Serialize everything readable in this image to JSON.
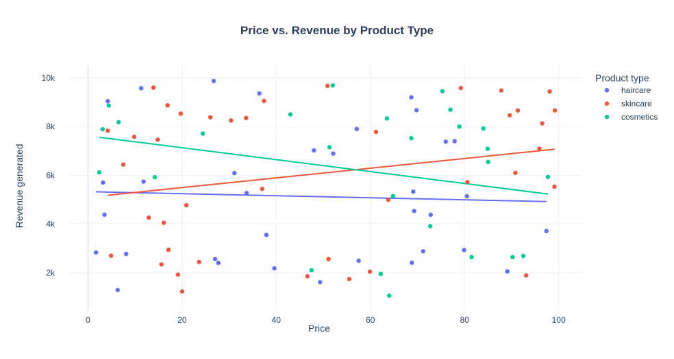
{
  "chart_data": {
    "type": "scatter",
    "title": "Price vs. Revenue by Product Type",
    "xlabel": "Price",
    "ylabel": "Revenue generated",
    "xlim": [
      -4,
      105
    ],
    "ylim": [
      450,
      10500
    ],
    "x_ticks": [
      0,
      20,
      40,
      60,
      80,
      100
    ],
    "x_tick_labels": [
      "0",
      "20",
      "40",
      "60",
      "80",
      "100"
    ],
    "y_ticks": [
      2000,
      4000,
      6000,
      8000,
      10000
    ],
    "y_tick_labels": [
      "2k",
      "4k",
      "6k",
      "8k",
      "10k"
    ],
    "grid": true,
    "legend": {
      "title": "Product type",
      "placement": "right"
    },
    "series": [
      {
        "name": "haircare",
        "color": "#636efa",
        "points": [
          [
            1.7,
            2830
          ],
          [
            3.2,
            5700
          ],
          [
            3.5,
            4380
          ],
          [
            4.2,
            9040
          ],
          [
            6.3,
            1290
          ],
          [
            8.1,
            2770
          ],
          [
            11.3,
            9570
          ],
          [
            11.8,
            5740
          ],
          [
            26.7,
            9870
          ],
          [
            27.0,
            2560
          ],
          [
            27.7,
            2400
          ],
          [
            31.1,
            6090
          ],
          [
            33.7,
            5270
          ],
          [
            36.4,
            9360
          ],
          [
            37.9,
            3550
          ],
          [
            39.6,
            2180
          ],
          [
            48.0,
            7020
          ],
          [
            49.3,
            1610
          ],
          [
            52.1,
            6890
          ],
          [
            57.1,
            7900
          ],
          [
            57.5,
            2490
          ],
          [
            68.7,
            9200
          ],
          [
            68.8,
            2410
          ],
          [
            69.1,
            5330
          ],
          [
            69.3,
            4530
          ],
          [
            69.8,
            8670
          ],
          [
            71.2,
            2880
          ],
          [
            72.8,
            4380
          ],
          [
            76.0,
            7380
          ],
          [
            77.9,
            7400
          ],
          [
            79.9,
            2930
          ],
          [
            80.5,
            5140
          ],
          [
            89.1,
            2050
          ],
          [
            97.4,
            3710
          ]
        ],
        "trend": [
          [
            1.7,
            5320
          ],
          [
            97.4,
            4920
          ]
        ]
      },
      {
        "name": "skincare",
        "color": "#ef553b",
        "points": [
          [
            4.2,
            7830
          ],
          [
            4.9,
            2700
          ],
          [
            7.5,
            6440
          ],
          [
            9.8,
            7580
          ],
          [
            12.9,
            4260
          ],
          [
            13.9,
            9600
          ],
          [
            14.8,
            7460
          ],
          [
            15.6,
            2340
          ],
          [
            16.1,
            4050
          ],
          [
            16.9,
            8870
          ],
          [
            17.1,
            2940
          ],
          [
            19.1,
            1920
          ],
          [
            19.7,
            8530
          ],
          [
            20.0,
            1230
          ],
          [
            20.9,
            4770
          ],
          [
            23.6,
            2440
          ],
          [
            26.0,
            8380
          ],
          [
            30.4,
            8250
          ],
          [
            33.6,
            8350
          ],
          [
            37.0,
            5440
          ],
          [
            37.4,
            9050
          ],
          [
            46.6,
            1850
          ],
          [
            50.9,
            9670
          ],
          [
            51.1,
            2560
          ],
          [
            55.5,
            1740
          ],
          [
            59.9,
            2040
          ],
          [
            61.2,
            7780
          ],
          [
            63.8,
            4990
          ],
          [
            79.2,
            9580
          ],
          [
            80.6,
            5720
          ],
          [
            87.8,
            9480
          ],
          [
            89.6,
            8460
          ],
          [
            90.8,
            6100
          ],
          [
            91.3,
            8660
          ],
          [
            93.1,
            1890
          ],
          [
            95.9,
            7090
          ],
          [
            96.5,
            8130
          ],
          [
            98.1,
            9440
          ],
          [
            99.1,
            5530
          ],
          [
            99.2,
            8660
          ]
        ],
        "trend": [
          [
            4.2,
            5180
          ],
          [
            99.2,
            7070
          ]
        ]
      },
      {
        "name": "cosmetics",
        "color": "#00cc96",
        "points": [
          [
            2.4,
            6120
          ],
          [
            3.1,
            7890
          ],
          [
            4.4,
            8860
          ],
          [
            6.5,
            8180
          ],
          [
            14.2,
            5920
          ],
          [
            24.4,
            7710
          ],
          [
            43.0,
            8500
          ],
          [
            47.5,
            2100
          ],
          [
            51.3,
            7150
          ],
          [
            52.0,
            9690
          ],
          [
            62.2,
            1950
          ],
          [
            63.5,
            8330
          ],
          [
            64.0,
            1060
          ],
          [
            64.8,
            5150
          ],
          [
            68.7,
            7520
          ],
          [
            72.7,
            3910
          ],
          [
            75.3,
            9450
          ],
          [
            77.0,
            8690
          ],
          [
            78.9,
            8000
          ],
          [
            81.5,
            2640
          ],
          [
            84.0,
            7920
          ],
          [
            84.9,
            7090
          ],
          [
            85.0,
            6550
          ],
          [
            90.2,
            2640
          ],
          [
            92.5,
            2690
          ],
          [
            97.7,
            5930
          ]
        ],
        "trend": [
          [
            2.4,
            7560
          ],
          [
            97.7,
            5230
          ]
        ]
      }
    ]
  }
}
